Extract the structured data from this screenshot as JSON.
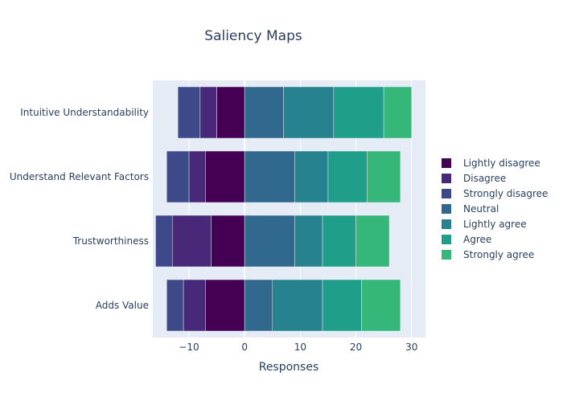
{
  "chart_data": {
    "type": "bar",
    "orientation": "horizontal",
    "barmode": "relative",
    "title": "Saliency Maps",
    "xlabel": "Responses",
    "ylabel": "",
    "xlim": [
      -16.5,
      32.5
    ],
    "xticks": [
      -10,
      0,
      10,
      20,
      30
    ],
    "xtick_labels": [
      "−10",
      "0",
      "10",
      "20",
      "30"
    ],
    "grid": true,
    "legend_position": "right",
    "categories": [
      "Adds Value",
      "Trustworthiness",
      "Understand Relevant Factors",
      "Intuitive Understandability"
    ],
    "series": [
      {
        "name": "Lightly disagree",
        "color": "#440154",
        "values": [
          -7,
          -6,
          -7,
          -5
        ]
      },
      {
        "name": "Disagree",
        "color": "#482878",
        "values": [
          -4,
          -7,
          -3,
          -3
        ]
      },
      {
        "name": "Strongly disagree",
        "color": "#3e4989",
        "values": [
          -3,
          -3,
          -4,
          -4
        ]
      },
      {
        "name": "Neutral",
        "color": "#31688e",
        "values": [
          5,
          9,
          9,
          7
        ]
      },
      {
        "name": "Lightly agree",
        "color": "#26828e",
        "values": [
          9,
          5,
          6,
          9
        ]
      },
      {
        "name": "Agree",
        "color": "#1f9e89",
        "values": [
          7,
          6,
          7,
          9
        ]
      },
      {
        "name": "Strongly agree",
        "color": "#35b779",
        "values": [
          7,
          6,
          6,
          5
        ]
      }
    ]
  }
}
